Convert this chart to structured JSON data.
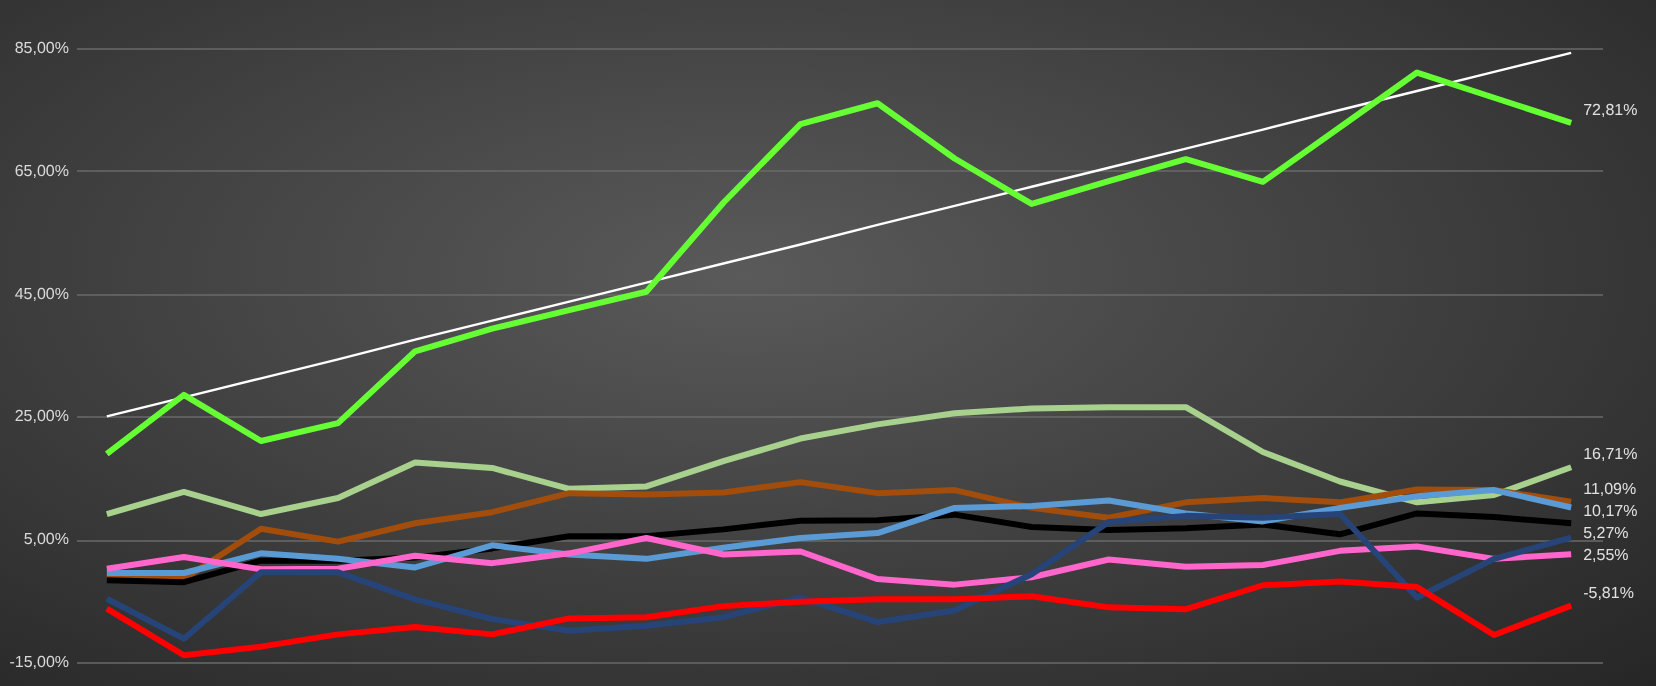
{
  "chart_data": {
    "type": "line",
    "categories": [
      null,
      null,
      null,
      null,
      null,
      null,
      null,
      null,
      null,
      null,
      null,
      null,
      null,
      null,
      null,
      null,
      null,
      null,
      null,
      null
    ],
    "series": [
      {
        "color": "#ffffff",
        "line_style": "solid",
        "values": [
          25.0,
          28.1,
          31.2,
          34.3,
          37.5,
          40.6,
          43.7,
          46.8,
          49.9,
          53.0,
          56.2,
          59.3,
          62.4,
          65.5,
          68.6,
          71.7,
          74.9,
          78.0,
          81.1,
          84.2
        ]
      },
      {
        "color": "#66ff33",
        "values": [
          18.9,
          28.5,
          21.0,
          23.9,
          35.6,
          39.3,
          42.3,
          45.3,
          59.8,
          72.6,
          76.0,
          67.0,
          59.6,
          63.3,
          66.9,
          63.2,
          72.1,
          81.0,
          76.9,
          72.81
        ],
        "value_labels": [
          null,
          null,
          null,
          null,
          null,
          null,
          null,
          null,
          null,
          null,
          null,
          null,
          null,
          null,
          null,
          null,
          null,
          null,
          null,
          "72,81%"
        ]
      },
      {
        "color": "#a9d18e",
        "values": [
          9.1,
          12.7,
          9.1,
          11.7,
          17.5,
          16.6,
          13.2,
          13.6,
          17.7,
          21.4,
          23.7,
          25.5,
          26.3,
          26.5,
          26.5,
          19.2,
          14.4,
          11.0,
          12.2,
          16.71
        ],
        "value_labels": [
          null,
          null,
          null,
          null,
          null,
          null,
          null,
          null,
          null,
          null,
          null,
          null,
          null,
          null,
          null,
          null,
          null,
          null,
          null,
          "16,71%"
        ]
      },
      {
        "color": "#a24d0b",
        "values": [
          -0.9,
          -1.5,
          6.7,
          4.6,
          7.6,
          9.4,
          12.5,
          12.3,
          12.6,
          14.3,
          12.5,
          13.0,
          10.1,
          8.5,
          11.0,
          11.7,
          11.0,
          13.1,
          13.0,
          11.09
        ],
        "value_labels": [
          null,
          null,
          null,
          null,
          null,
          null,
          null,
          null,
          null,
          null,
          null,
          null,
          null,
          null,
          null,
          null,
          null,
          null,
          null,
          "11,09%"
        ]
      },
      {
        "color": "#000000",
        "values": [
          -1.7,
          -2.0,
          1.5,
          1.5,
          2.0,
          3.5,
          5.5,
          5.5,
          6.6,
          8.0,
          8.1,
          9.0,
          7.0,
          6.5,
          6.8,
          7.4,
          5.8,
          9.2,
          8.6,
          7.6
        ]
      },
      {
        "color": "#5b9bd5",
        "values": [
          -0.5,
          -0.5,
          2.7,
          1.8,
          0.4,
          4.0,
          2.5,
          1.8,
          3.6,
          5.2,
          6.0,
          10.1,
          10.4,
          11.3,
          9.2,
          7.9,
          10.1,
          12.0,
          13.0,
          10.17
        ],
        "value_labels": [
          null,
          null,
          null,
          null,
          null,
          null,
          null,
          null,
          null,
          null,
          null,
          null,
          null,
          null,
          null,
          null,
          null,
          null,
          null,
          "10,17%"
        ]
      },
      {
        "color": "#ff66cc",
        "values": [
          0.2,
          2.1,
          0.1,
          0.2,
          2.3,
          1.1,
          2.7,
          5.2,
          2.5,
          3.0,
          -1.5,
          -2.4,
          -1.2,
          1.7,
          0.5,
          0.8,
          3.1,
          3.8,
          1.8,
          2.55
        ],
        "value_labels": [
          null,
          null,
          null,
          null,
          null,
          null,
          null,
          null,
          null,
          null,
          null,
          null,
          null,
          null,
          null,
          null,
          null,
          null,
          null,
          "2,55%"
        ]
      },
      {
        "color": "#264478",
        "values": [
          -4.7,
          -11.2,
          -0.4,
          -0.4,
          -4.8,
          -8.0,
          -9.9,
          -9.1,
          -7.7,
          -4.5,
          -8.5,
          -6.6,
          -0.7,
          7.8,
          8.8,
          8.5,
          9.1,
          -4.5,
          1.8,
          5.27
        ],
        "value_labels": [
          null,
          null,
          null,
          null,
          null,
          null,
          null,
          null,
          null,
          null,
          null,
          null,
          null,
          null,
          null,
          null,
          null,
          null,
          null,
          "5,27%"
        ]
      },
      {
        "color": "#ff0000",
        "values": [
          -6.3,
          -13.9,
          -12.5,
          -10.5,
          -9.3,
          -10.5,
          -7.9,
          -7.7,
          -5.9,
          -5.2,
          -4.8,
          -4.8,
          -4.3,
          -6.1,
          -6.4,
          -2.5,
          -1.9,
          -2.8,
          -10.6,
          -5.81
        ],
        "value_labels": [
          null,
          null,
          null,
          null,
          null,
          null,
          null,
          null,
          null,
          null,
          null,
          null,
          null,
          null,
          null,
          null,
          null,
          null,
          null,
          "-5,81%"
        ]
      }
    ],
    "ylim": [
      -15,
      85
    ],
    "yticks": [
      {
        "value": -15,
        "label": "-15,00%"
      },
      {
        "value": 5,
        "label": "5,00%"
      },
      {
        "value": 25,
        "label": "25,00%"
      },
      {
        "value": 45,
        "label": "45,00%"
      },
      {
        "value": 65,
        "label": "65,00%"
      },
      {
        "value": 85,
        "label": "85,00%"
      }
    ],
    "grid": "y",
    "tick_labels": "y"
  }
}
